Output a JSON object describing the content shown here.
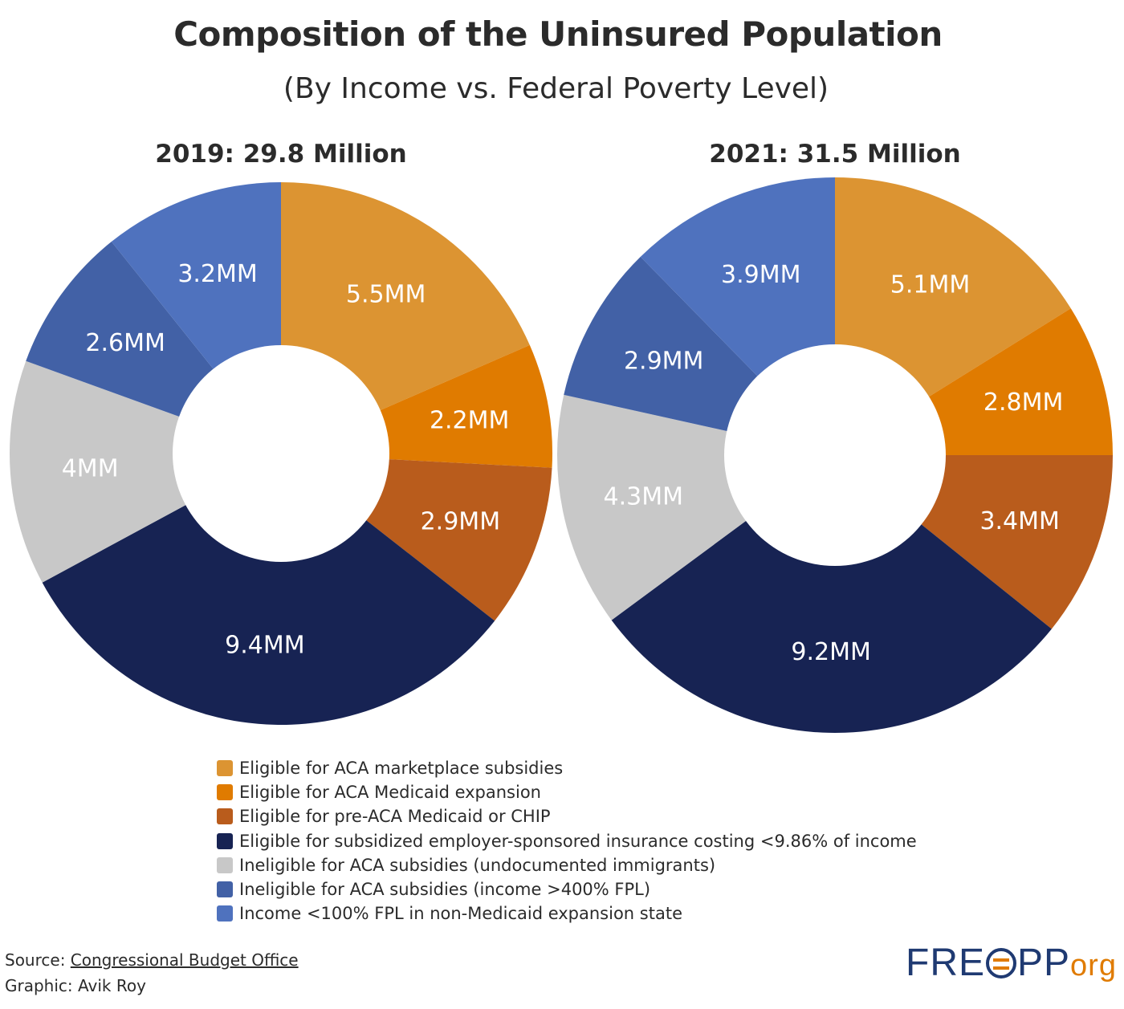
{
  "title": "Composition of the Uninsured Population",
  "subtitle": "(By Income vs. Federal Poverty Level)",
  "colors": [
    "#dc9432",
    "#e07b00",
    "#b95c1c",
    "#172353",
    "#c8c8c8",
    "#4261a6",
    "#4f72be"
  ],
  "chart_data": [
    {
      "type": "pie",
      "title": "2019: 29.8 Million",
      "unit": "MM",
      "categories": [
        "Eligible for ACA marketplace subsidies",
        "Eligible for ACA Medicaid expansion",
        "Eligible for pre-ACA Medicaid or CHIP",
        "Eligible for subsidized employer-sponsored insurance costing <9.86% of income",
        "Ineligible for ACA subsidies (undocumented immigrants)",
        "Ineligible for ACA subsidies (income >400% FPL)",
        "Income <100% FPL in non-Medicaid expansion state"
      ],
      "values": [
        5.5,
        2.2,
        2.9,
        9.4,
        4,
        2.6,
        3.2
      ],
      "labels": [
        "5.5MM",
        "2.2MM",
        "2.9MM",
        "9.4MM",
        "4MM",
        "2.6MM",
        "3.2MM"
      ]
    },
    {
      "type": "pie",
      "title": "2021: 31.5 Million",
      "unit": "MM",
      "categories": [
        "Eligible for ACA marketplace subsidies",
        "Eligible for ACA Medicaid expansion",
        "Eligible for pre-ACA Medicaid or CHIP",
        "Eligible for subsidized employer-sponsored insurance costing <9.86% of income",
        "Ineligible for ACA subsidies (undocumented immigrants)",
        "Ineligible for ACA subsidies (income >400% FPL)",
        "Income <100% FPL in non-Medicaid expansion state"
      ],
      "values": [
        5.1,
        2.8,
        3.4,
        9.2,
        4.3,
        2.9,
        3.9
      ],
      "labels": [
        "5.1MM",
        "2.8MM",
        "3.4MM",
        "9.2MM",
        "4.3MM",
        "2.9MM",
        "3.9MM"
      ]
    }
  ],
  "legend": [
    "Eligible for ACA marketplace subsidies",
    "Eligible for ACA Medicaid expansion",
    "Eligible for pre-ACA Medicaid or CHIP",
    "Eligible for subsidized employer-sponsored insurance costing <9.86% of income",
    "Ineligible for ACA subsidies (undocumented immigrants)",
    "Ineligible for ACA subsidies (income >400% FPL)",
    "Income <100% FPL in non-Medicaid expansion state"
  ],
  "source": {
    "prefix": "Source: ",
    "link_text": "Congressional Budget Office",
    "graphic_credit": "Graphic: Avik Roy"
  },
  "logo": {
    "part1": "FRE",
    "part2": "PP",
    "suffix": "org"
  }
}
